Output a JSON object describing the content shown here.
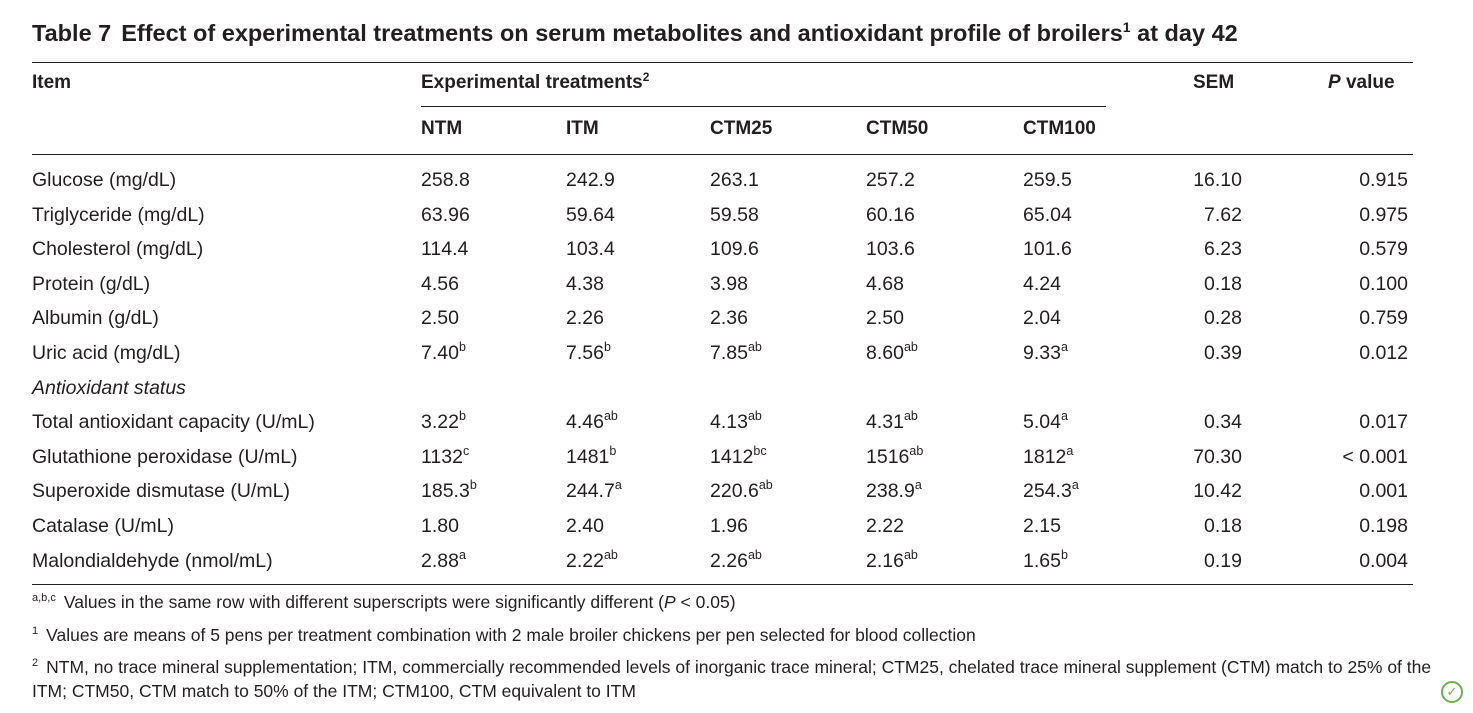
{
  "table": {
    "title_label": "Table 7",
    "title_text": "Effect of experimental treatments on serum metabolites and antioxidant profile of broilers",
    "title_sup": "1",
    "title_tail": " at day 42",
    "headers": {
      "item": "Item",
      "group": "Experimental treatments",
      "group_sup": "2",
      "sem": "SEM",
      "p_italic": "P",
      "p_rest": " value",
      "columns": [
        "NTM",
        "ITM",
        "CTM25",
        "CTM50",
        "CTM100"
      ]
    },
    "rows": [
      {
        "label": "Glucose (mg/dL)",
        "values": [
          [
            "258.8",
            ""
          ],
          [
            "242.9",
            ""
          ],
          [
            "263.1",
            ""
          ],
          [
            "257.2",
            ""
          ],
          [
            "259.5",
            ""
          ]
        ],
        "sem": "16.10",
        "p": "0.915"
      },
      {
        "label": "Triglyceride (mg/dL)",
        "values": [
          [
            "63.96",
            ""
          ],
          [
            "59.64",
            ""
          ],
          [
            "59.58",
            ""
          ],
          [
            "60.16",
            ""
          ],
          [
            "65.04",
            ""
          ]
        ],
        "sem": "7.62",
        "p": "0.975"
      },
      {
        "label": "Cholesterol (mg/dL)",
        "values": [
          [
            "114.4",
            ""
          ],
          [
            "103.4",
            ""
          ],
          [
            "109.6",
            ""
          ],
          [
            "103.6",
            ""
          ],
          [
            "101.6",
            ""
          ]
        ],
        "sem": "6.23",
        "p": "0.579"
      },
      {
        "label": "Protein (g/dL)",
        "values": [
          [
            "4.56",
            ""
          ],
          [
            "4.38",
            ""
          ],
          [
            "3.98",
            ""
          ],
          [
            "4.68",
            ""
          ],
          [
            "4.24",
            ""
          ]
        ],
        "sem": "0.18",
        "p": "0.100"
      },
      {
        "label": "Albumin (g/dL)",
        "values": [
          [
            "2.50",
            ""
          ],
          [
            "2.26",
            ""
          ],
          [
            "2.36",
            ""
          ],
          [
            "2.50",
            ""
          ],
          [
            "2.04",
            ""
          ]
        ],
        "sem": "0.28",
        "p": "0.759"
      },
      {
        "label": "Uric acid (mg/dL)",
        "values": [
          [
            "7.40",
            "b"
          ],
          [
            "7.56",
            "b"
          ],
          [
            "7.85",
            "ab"
          ],
          [
            "8.60",
            "ab"
          ],
          [
            "9.33",
            "a"
          ]
        ],
        "sem": "0.39",
        "p": "0.012"
      },
      {
        "section": "Antioxidant status"
      },
      {
        "label": "Total antioxidant capacity (U/mL)",
        "values": [
          [
            "3.22",
            "b"
          ],
          [
            "4.46",
            "ab"
          ],
          [
            "4.13",
            "ab"
          ],
          [
            "4.31",
            "ab"
          ],
          [
            "5.04",
            "a"
          ]
        ],
        "sem": "0.34",
        "p": "0.017"
      },
      {
        "label": "Glutathione peroxidase (U/mL)",
        "values": [
          [
            "1132",
            "c"
          ],
          [
            "1481",
            "b"
          ],
          [
            "1412",
            "bc"
          ],
          [
            "1516",
            "ab"
          ],
          [
            "1812",
            "a"
          ]
        ],
        "sem": "70.30",
        "p": "< 0.001"
      },
      {
        "label": "Superoxide dismutase (U/mL)",
        "values": [
          [
            "185.3",
            "b"
          ],
          [
            "244.7",
            "a"
          ],
          [
            "220.6",
            "ab"
          ],
          [
            "238.9",
            "a"
          ],
          [
            "254.3",
            "a"
          ]
        ],
        "sem": "10.42",
        "p": "0.001"
      },
      {
        "label": "Catalase (U/mL)",
        "values": [
          [
            "1.80",
            ""
          ],
          [
            "2.40",
            ""
          ],
          [
            "1.96",
            ""
          ],
          [
            "2.22",
            ""
          ],
          [
            "2.15",
            ""
          ]
        ],
        "sem": "0.18",
        "p": "0.198"
      },
      {
        "label": "Malondialdehyde (nmol/mL)",
        "values": [
          [
            "2.88",
            "a"
          ],
          [
            "2.22",
            "ab"
          ],
          [
            "2.26",
            "ab"
          ],
          [
            "2.16",
            "ab"
          ],
          [
            "1.65",
            "b"
          ]
        ],
        "sem": "0.19",
        "p": "0.004"
      }
    ]
  },
  "footnotes": [
    {
      "marker": "a,b,c",
      "text_before": "Values in the same row with different superscripts were significantly different (",
      "italic": "P",
      "text_after": " < 0.05)"
    },
    {
      "marker": "1",
      "text_before": "Values are means of 5 pens per treatment combination with 2 male broiler chickens per pen selected for blood collection",
      "italic": "",
      "text_after": ""
    },
    {
      "marker": "2",
      "text_before": "NTM, no trace mineral supplementation; ITM, commercially recommended levels of inorganic trace mineral; CTM25, chelated trace mineral supplement (CTM) match to 25% of the ITM; CTM50, CTM match to 50% of the ITM; CTM100, CTM equivalent to ITM",
      "italic": "",
      "text_after": ""
    }
  ],
  "badge_icon": "open-access-leaf-icon",
  "badge_glyph": "✓"
}
